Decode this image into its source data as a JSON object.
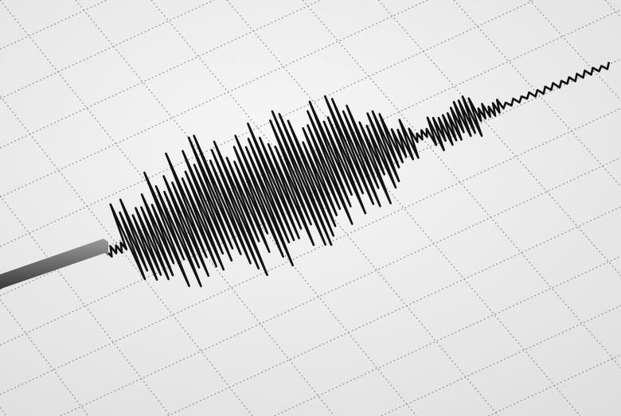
{
  "colors": {
    "paper": "#f2f2f2",
    "paper_shade": "#dcdcdc",
    "grid": "#6e6e6e",
    "trace": "#111111",
    "stylus_arm": "#555555"
  }
}
